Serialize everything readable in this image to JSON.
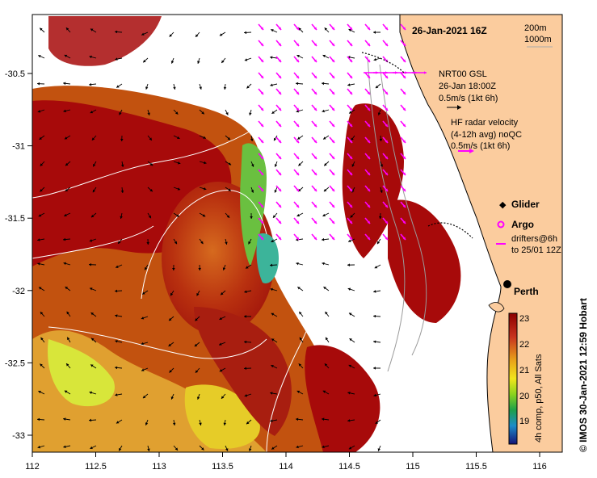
{
  "title": "26-Jan-2021 16Z",
  "isobaths": {
    "line1": "200m",
    "line2": "1000m"
  },
  "gsl": {
    "line1": "NRT00 GSL",
    "line2": "26-Jan 18:00Z",
    "line3": "0.5m/s (1kt 6h)"
  },
  "hf": {
    "line1": "HF radar velocity",
    "line2": "(4-12h avg) noQC",
    "line3": "0.5m/s (1kt 6h)"
  },
  "legend": {
    "glider": "Glider",
    "argo": "Argo",
    "drifters1": "drifters@6h",
    "drifters2": "to 25/01 12Z"
  },
  "city": "Perth",
  "colorbar": {
    "ticks": [
      "23",
      "22",
      "21",
      "20",
      "19"
    ],
    "label": "4h comp, p50, All Sats"
  },
  "credit": "©  IMOS 30-Jan-2021 12:59 Hobart",
  "x_ticks": [
    "112",
    "112.5",
    "113",
    "113.5",
    "114",
    "114.5",
    "115",
    "115.5",
    "116"
  ],
  "y_ticks": [
    "-30.5",
    "-31",
    "-31.5",
    "-32",
    "-32.5",
    "-33"
  ],
  "colors": {
    "land": "#fbcc9e",
    "high_sst": "#a70a0a",
    "current_arrow": "#000000",
    "hf_arrow": "#ff00ff"
  }
}
